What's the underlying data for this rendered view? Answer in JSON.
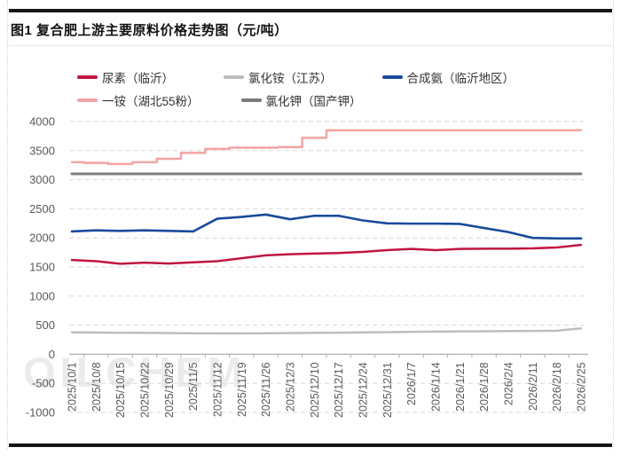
{
  "header": {
    "title": "图1 复合肥上游主要原料价格走势图（元/吨）"
  },
  "watermark_text": "OILCHEM",
  "chart_data": {
    "type": "line",
    "title": "图1 复合肥上游主要原料价格走势图（元/吨）",
    "unit": "元/吨",
    "legend_position": "top",
    "grid": true,
    "ylim": [
      -1000,
      4000
    ],
    "yticks": [
      4000,
      3500,
      3000,
      2500,
      2000,
      1500,
      1000,
      500,
      0,
      -500,
      -1000
    ],
    "x": [
      "2025/10/1",
      "2025/10/8",
      "2025/10/15",
      "2025/10/22",
      "2025/10/29",
      "2025/11/5",
      "2025/11/12",
      "2025/11/19",
      "2025/11/26",
      "2025/12/3",
      "2025/12/10",
      "2025/12/17",
      "2025/12/24",
      "2025/12/31",
      "2026/1/7",
      "2026/1/14",
      "2026/1/21",
      "2026/1/28",
      "2026/2/4",
      "2026/2/11",
      "2026/2/18",
      "2026/2/25"
    ],
    "series": [
      {
        "name": "尿素（临沂）",
        "key": "urea-linyi",
        "color": "#c01540",
        "width": 2.5,
        "step": false,
        "values": [
          1620,
          1600,
          1555,
          1575,
          1560,
          1580,
          1600,
          1650,
          1700,
          1720,
          1730,
          1740,
          1760,
          1790,
          1810,
          1790,
          1810,
          1815,
          1815,
          1820,
          1835,
          1880
        ]
      },
      {
        "name": "氯化铵（江苏）",
        "key": "ammonium-chloride-jiangsu",
        "color": "#bdbdbd",
        "width": 2.5,
        "step": false,
        "values": [
          375,
          373,
          370,
          368,
          365,
          360,
          358,
          358,
          360,
          365,
          368,
          370,
          375,
          380,
          385,
          390,
          392,
          395,
          398,
          400,
          405,
          445
        ]
      },
      {
        "name": "合成氨（临沂地区）",
        "key": "synthetic-ammonia-linyi",
        "color": "#1a4a9c",
        "width": 2.6,
        "step": false,
        "values": [
          2110,
          2130,
          2120,
          2130,
          2120,
          2110,
          2330,
          2360,
          2400,
          2320,
          2380,
          2380,
          2300,
          2250,
          2245,
          2245,
          2240,
          2170,
          2100,
          2000,
          1990,
          1990
        ]
      },
      {
        "name": "一铵（湖北55粉）",
        "key": "map-hubei-55",
        "color": "#f2a3a3",
        "width": 2.5,
        "step": true,
        "values": [
          3300,
          3290,
          3270,
          3300,
          3360,
          3460,
          3530,
          3550,
          3550,
          3560,
          3720,
          3850,
          3850,
          3850,
          3850,
          3850,
          3850,
          3850,
          3850,
          3850,
          3850,
          3850
        ]
      },
      {
        "name": "氯化钾（国产钾）",
        "key": "potassium-chloride-domestic",
        "color": "#7b7b7b",
        "width": 3,
        "step": false,
        "values": [
          3100,
          3100,
          3100,
          3100,
          3100,
          3100,
          3100,
          3100,
          3100,
          3100,
          3100,
          3100,
          3100,
          3100,
          3100,
          3100,
          3100,
          3100,
          3100,
          3100,
          3100,
          3100
        ]
      }
    ]
  }
}
